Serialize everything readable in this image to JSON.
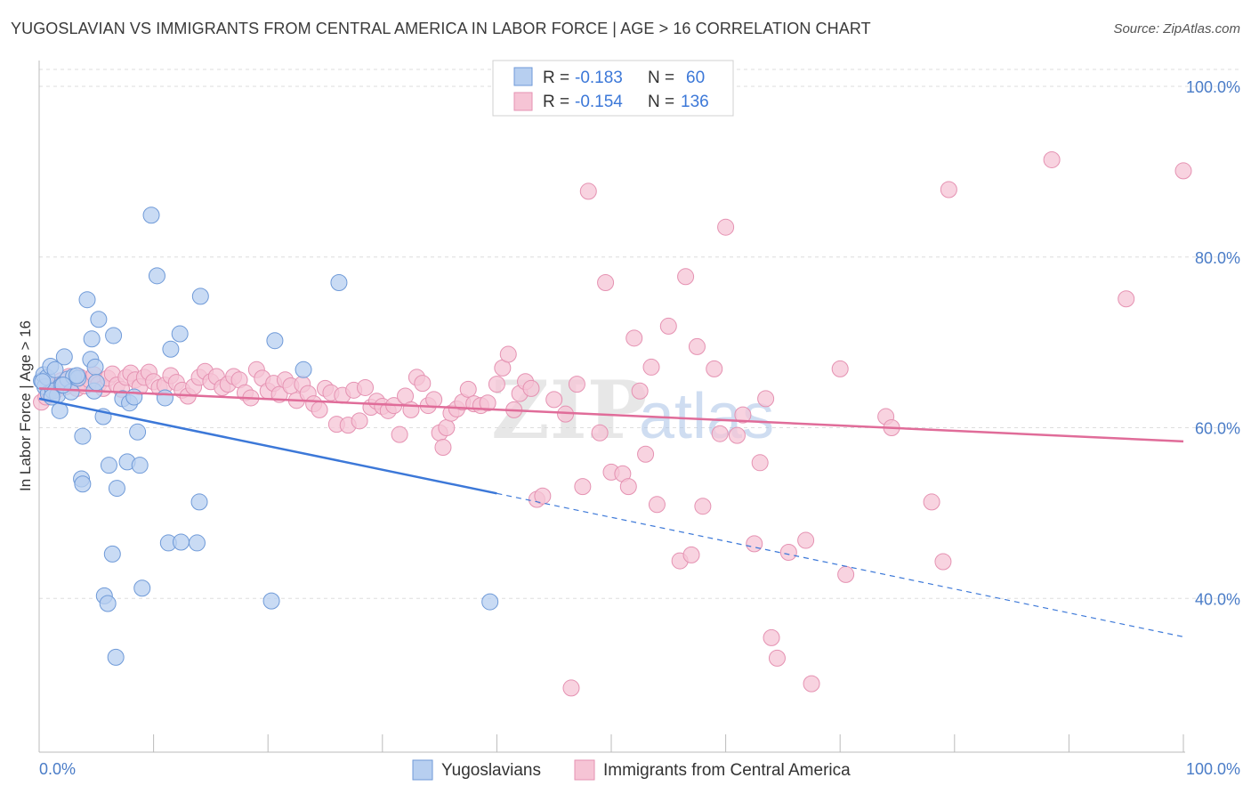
{
  "title": "YUGOSLAVIAN VS IMMIGRANTS FROM CENTRAL AMERICA IN LABOR FORCE | AGE > 16 CORRELATION CHART",
  "source": "Source: ZipAtlas.com",
  "watermark": {
    "zip": "ZIP",
    "atlas": "atlas"
  },
  "colors": {
    "blue": "#3c78d8",
    "blue_fill": "#b7cff0",
    "pink": "#e06c99",
    "pink_fill": "#f6c4d5",
    "grid": "#dddddd",
    "tick_text": "#4a7cc7"
  },
  "legend_box": {
    "r_label": "R =",
    "n_label": "N =",
    "rows": [
      {
        "r": "-0.183",
        "n": "60"
      },
      {
        "r": "-0.154",
        "n": "136"
      }
    ]
  },
  "bottom_legend": [
    "Yugoslavians",
    "Immigrants from Central America"
  ],
  "chart_data": {
    "type": "scatter",
    "title": "YUGOSLAVIAN VS IMMIGRANTS FROM CENTRAL AMERICA IN LABOR FORCE | AGE > 16 CORRELATION CHART",
    "xlabel": "",
    "ylabel": "In Labor Force | Age > 16",
    "xlim": [
      0,
      100
    ],
    "ylim": [
      20,
      100
    ],
    "x_tick_labels": [
      "0.0%",
      "100.0%"
    ],
    "y_ticks": [
      40,
      60,
      80,
      100
    ],
    "y_tick_labels": [
      "40.0%",
      "60.0%",
      "80.0%",
      "100.0%"
    ],
    "grid": true,
    "legend_position": "top-center",
    "series": [
      {
        "name": "Yugoslavians",
        "color": "#3c78d8",
        "r": -0.183,
        "n": 60,
        "trend": {
          "x0": 0,
          "y0": 63.4,
          "x1": 40,
          "y1": 52.3,
          "dashed_to_x": 100,
          "dashed_to_y": 35.5
        },
        "points": [
          [
            0.2,
            65.5
          ],
          [
            0.4,
            66.2
          ],
          [
            0.5,
            64.8
          ],
          [
            0.7,
            65.9
          ],
          [
            0.8,
            64.0
          ],
          [
            1.0,
            67.2
          ],
          [
            1.2,
            64.3
          ],
          [
            1.4,
            66.8
          ],
          [
            1.6,
            63.8
          ],
          [
            1.8,
            62.0
          ],
          [
            2.0,
            65.0
          ],
          [
            2.2,
            68.3
          ],
          [
            2.5,
            65.7
          ],
          [
            2.8,
            64.2
          ],
          [
            3.0,
            66.0
          ],
          [
            3.4,
            65.8
          ],
          [
            3.8,
            59.0
          ],
          [
            4.2,
            75.0
          ],
          [
            4.5,
            68.0
          ],
          [
            4.6,
            70.4
          ],
          [
            4.8,
            64.3
          ],
          [
            4.9,
            67.1
          ],
          [
            5.2,
            72.7
          ],
          [
            5.6,
            61.3
          ],
          [
            6.1,
            55.6
          ],
          [
            6.8,
            52.9
          ],
          [
            6.5,
            70.8
          ],
          [
            7.3,
            63.4
          ],
          [
            7.7,
            56.0
          ],
          [
            7.9,
            62.9
          ],
          [
            8.3,
            63.6
          ],
          [
            8.6,
            59.5
          ],
          [
            8.8,
            55.6
          ],
          [
            9.8,
            84.9
          ],
          [
            10.3,
            77.8
          ],
          [
            11.0,
            63.5
          ],
          [
            11.5,
            69.2
          ],
          [
            12.3,
            71.0
          ],
          [
            14.1,
            75.4
          ],
          [
            3.7,
            54.0
          ],
          [
            3.8,
            53.4
          ],
          [
            6.4,
            45.2
          ],
          [
            9.0,
            41.2
          ],
          [
            11.3,
            46.5
          ],
          [
            12.4,
            46.6
          ],
          [
            13.8,
            46.5
          ],
          [
            14.0,
            51.3
          ],
          [
            5.7,
            40.3
          ],
          [
            6.0,
            39.4
          ],
          [
            6.7,
            33.1
          ],
          [
            20.3,
            39.7
          ],
          [
            20.6,
            70.2
          ],
          [
            23.1,
            66.8
          ],
          [
            26.2,
            77.0
          ],
          [
            39.4,
            39.6
          ],
          [
            0.3,
            65.4
          ],
          [
            1.1,
            63.6
          ],
          [
            2.1,
            65.0
          ],
          [
            5.0,
            65.3
          ],
          [
            3.3,
            66.1
          ]
        ]
      },
      {
        "name": "Immigrants from Central America",
        "color": "#e06c99",
        "r": -0.154,
        "n": 136,
        "trend": {
          "x0": 0,
          "y0": 64.6,
          "x1": 100,
          "y1": 58.4
        },
        "points": [
          [
            0.2,
            63.0
          ],
          [
            0.6,
            63.6
          ],
          [
            0.9,
            64.2
          ],
          [
            1.2,
            65.0
          ],
          [
            1.5,
            64.4
          ],
          [
            1.9,
            65.5
          ],
          [
            2.3,
            64.8
          ],
          [
            2.6,
            66.0
          ],
          [
            3.0,
            65.2
          ],
          [
            3.3,
            64.6
          ],
          [
            3.6,
            65.9
          ],
          [
            4.0,
            64.9
          ],
          [
            4.4,
            65.6
          ],
          [
            4.8,
            66.2
          ],
          [
            5.2,
            65.1
          ],
          [
            5.6,
            64.6
          ],
          [
            6.0,
            65.8
          ],
          [
            6.4,
            66.3
          ],
          [
            6.8,
            65.0
          ],
          [
            7.2,
            64.5
          ],
          [
            7.6,
            65.9
          ],
          [
            8.0,
            66.4
          ],
          [
            8.4,
            65.6
          ],
          [
            8.8,
            64.8
          ],
          [
            9.2,
            65.9
          ],
          [
            9.6,
            66.5
          ],
          [
            10.0,
            65.4
          ],
          [
            10.5,
            64.7
          ],
          [
            11.0,
            65.0
          ],
          [
            11.5,
            66.1
          ],
          [
            12.0,
            65.3
          ],
          [
            12.5,
            64.4
          ],
          [
            13.0,
            63.7
          ],
          [
            13.5,
            64.8
          ],
          [
            14.0,
            65.9
          ],
          [
            14.5,
            66.6
          ],
          [
            15.0,
            65.4
          ],
          [
            15.5,
            66.0
          ],
          [
            16.0,
            64.7
          ],
          [
            16.5,
            65.1
          ],
          [
            17.0,
            66.0
          ],
          [
            17.5,
            65.6
          ],
          [
            18.0,
            64.1
          ],
          [
            18.5,
            63.5
          ],
          [
            19.0,
            66.8
          ],
          [
            19.5,
            65.8
          ],
          [
            20.0,
            64.3
          ],
          [
            20.5,
            65.2
          ],
          [
            21.0,
            63.9
          ],
          [
            21.5,
            65.6
          ],
          [
            22.0,
            64.9
          ],
          [
            22.5,
            63.2
          ],
          [
            23.0,
            65.1
          ],
          [
            23.5,
            64.0
          ],
          [
            24.0,
            62.8
          ],
          [
            24.5,
            62.1
          ],
          [
            25.0,
            64.6
          ],
          [
            25.5,
            64.1
          ],
          [
            26.0,
            60.4
          ],
          [
            26.5,
            63.8
          ],
          [
            27.0,
            60.3
          ],
          [
            27.5,
            64.4
          ],
          [
            28.0,
            60.8
          ],
          [
            28.5,
            64.7
          ],
          [
            29.0,
            62.4
          ],
          [
            29.5,
            63.1
          ],
          [
            30.0,
            62.5
          ],
          [
            30.5,
            62.0
          ],
          [
            31.0,
            62.6
          ],
          [
            31.5,
            59.2
          ],
          [
            32.0,
            63.7
          ],
          [
            32.5,
            62.1
          ],
          [
            33.0,
            65.9
          ],
          [
            33.5,
            65.2
          ],
          [
            34.0,
            62.6
          ],
          [
            34.5,
            63.3
          ],
          [
            35.0,
            59.4
          ],
          [
            35.3,
            57.7
          ],
          [
            35.6,
            60.0
          ],
          [
            36.0,
            61.7
          ],
          [
            36.5,
            62.2
          ],
          [
            37.0,
            63.0
          ],
          [
            37.5,
            64.5
          ],
          [
            38.0,
            62.8
          ],
          [
            38.6,
            62.6
          ],
          [
            39.2,
            62.9
          ],
          [
            40.0,
            65.1
          ],
          [
            40.5,
            67.0
          ],
          [
            41.0,
            68.6
          ],
          [
            41.5,
            62.1
          ],
          [
            42.0,
            64.0
          ],
          [
            42.5,
            65.4
          ],
          [
            43.0,
            64.6
          ],
          [
            43.5,
            51.6
          ],
          [
            44.0,
            52.0
          ],
          [
            45.0,
            63.3
          ],
          [
            46.0,
            61.6
          ],
          [
            47.0,
            65.1
          ],
          [
            47.5,
            53.1
          ],
          [
            48.0,
            87.7
          ],
          [
            49.0,
            59.4
          ],
          [
            49.5,
            77.0
          ],
          [
            50.0,
            54.8
          ],
          [
            51.0,
            54.6
          ],
          [
            51.5,
            53.1
          ],
          [
            52.0,
            70.5
          ],
          [
            52.5,
            64.3
          ],
          [
            53.0,
            56.9
          ],
          [
            53.5,
            67.1
          ],
          [
            54.0,
            51.0
          ],
          [
            55.0,
            71.9
          ],
          [
            56.0,
            44.4
          ],
          [
            56.5,
            77.7
          ],
          [
            57.0,
            45.1
          ],
          [
            57.5,
            69.5
          ],
          [
            58.0,
            50.8
          ],
          [
            59.0,
            66.9
          ],
          [
            59.5,
            59.3
          ],
          [
            60.0,
            83.5
          ],
          [
            61.0,
            59.1
          ],
          [
            61.5,
            61.5
          ],
          [
            62.5,
            46.4
          ],
          [
            63.0,
            55.9
          ],
          [
            63.5,
            63.4
          ],
          [
            64.0,
            35.4
          ],
          [
            64.5,
            33.0
          ],
          [
            65.5,
            45.4
          ],
          [
            67.0,
            46.8
          ],
          [
            67.5,
            30.0
          ],
          [
            70.0,
            66.9
          ],
          [
            70.5,
            42.8
          ],
          [
            74.0,
            61.3
          ],
          [
            74.5,
            60.0
          ],
          [
            79.0,
            44.3
          ],
          [
            78.0,
            51.3
          ],
          [
            79.5,
            87.9
          ],
          [
            88.5,
            91.4
          ],
          [
            95.0,
            75.1
          ],
          [
            100.0,
            90.1
          ],
          [
            46.5,
            29.5
          ]
        ]
      }
    ]
  }
}
